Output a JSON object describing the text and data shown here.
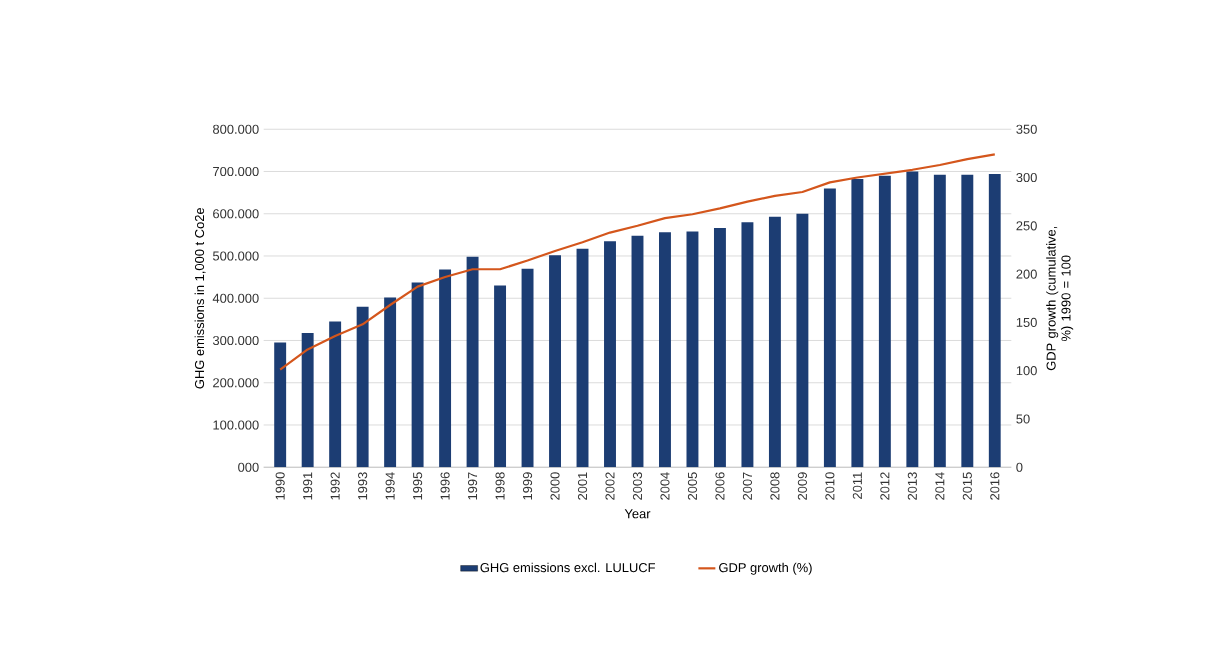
{
  "chart_data": {
    "type": "bar",
    "xlabel": "Year",
    "ylabel": "GHG emissions in 1,000 t Co2e",
    "y2label": "GDP growth (cumulative, %) 1990 = 100",
    "categories": [
      "1990",
      "1991",
      "1992",
      "1993",
      "1994",
      "1995",
      "1996",
      "1997",
      "1998",
      "1999",
      "2000",
      "2001",
      "2002",
      "2003",
      "2004",
      "2005",
      "2006",
      "2007",
      "2008",
      "2009",
      "2010",
      "2011",
      "2012",
      "2013",
      "2014",
      "2015",
      "2016"
    ],
    "series": [
      {
        "name": "GHG emissions excl. LULUCF",
        "color": "#1c3d73",
        "values": [
          295000,
          318000,
          345000,
          380000,
          402000,
          437000,
          468000,
          498000,
          430000,
          470000,
          502000,
          517000,
          535000,
          548000,
          556000,
          558000,
          566000,
          580000,
          593000,
          600000,
          660000,
          682000,
          690000,
          700000,
          692000,
          692000,
          694000
        ]
      },
      {
        "name": "GDP growth (%)",
        "type": "line",
        "axis": "y2",
        "color": "#d4561c",
        "values": [
          101,
          122,
          136,
          148,
          168,
          187,
          197,
          205,
          205,
          214,
          224,
          233,
          243,
          250,
          258,
          262,
          268,
          275,
          281,
          285,
          295,
          300,
          304,
          308,
          313,
          319,
          324
        ]
      }
    ],
    "ylim": [
      0,
      800000
    ],
    "yticks": [
      {
        "value": 0,
        "label": "000"
      },
      {
        "value": 100000,
        "label": "100.000"
      },
      {
        "value": 200000,
        "label": "200.000"
      },
      {
        "value": 300000,
        "label": "300.000"
      },
      {
        "value": 400000,
        "label": "400.000"
      },
      {
        "value": 500000,
        "label": "500.000"
      },
      {
        "value": 600000,
        "label": "600.000"
      },
      {
        "value": 700000,
        "label": "700.000"
      },
      {
        "value": 800000,
        "label": "800.000"
      }
    ],
    "y2lim": [
      0,
      350
    ],
    "y2ticks": [
      0,
      50,
      100,
      150,
      200,
      250,
      300,
      350
    ],
    "grid": "y",
    "legend": "bottom"
  }
}
